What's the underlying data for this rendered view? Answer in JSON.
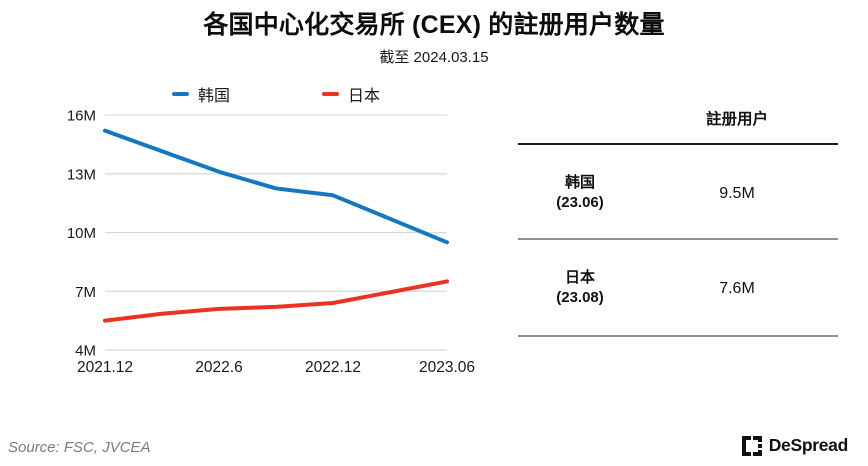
{
  "header": {
    "title": "各国中心化交易所 (CEX) 的註册用户数量",
    "subtitle": "截至 2024.03.15"
  },
  "chart_data": {
    "type": "line",
    "x": [
      "2021.12",
      "2022.3",
      "2022.6",
      "2022.9",
      "2022.12",
      "2023.3",
      "2023.06"
    ],
    "x_tick_indices": [
      0,
      2,
      4,
      6
    ],
    "x_tick_labels": [
      "2021.12",
      "2022.6",
      "2022.12",
      "2023.06"
    ],
    "series": [
      {
        "name": "韩国",
        "color": "#1577bf",
        "values": [
          15.2,
          14.15,
          13.1,
          12.25,
          11.9,
          10.7,
          9.5
        ]
      },
      {
        "name": "日本",
        "color": "#ed3124",
        "values": [
          5.5,
          5.85,
          6.1,
          6.2,
          6.4,
          6.95,
          7.5
        ]
      }
    ],
    "ylim": [
      4,
      16
    ],
    "yticks": [
      {
        "value": 4,
        "label": "4M"
      },
      {
        "value": 7,
        "label": "7M"
      },
      {
        "value": 10,
        "label": "10M"
      },
      {
        "value": 13,
        "label": "13M"
      },
      {
        "value": 16,
        "label": "16M"
      }
    ],
    "grid": true,
    "legend_position": "top",
    "grid_color": "#d9d9d9",
    "axis_text_color": "#1a1a1a"
  },
  "table": {
    "header": "註册用户",
    "rows": [
      {
        "label": "韩国",
        "sublabel": "(23.06)",
        "value": "9.5M"
      },
      {
        "label": "日本",
        "sublabel": "(23.08)",
        "value": "7.6M"
      }
    ]
  },
  "footer": {
    "source": "Source: FSC, JVCEA",
    "brand": "DeSpread",
    "brand_color": "#111111"
  }
}
